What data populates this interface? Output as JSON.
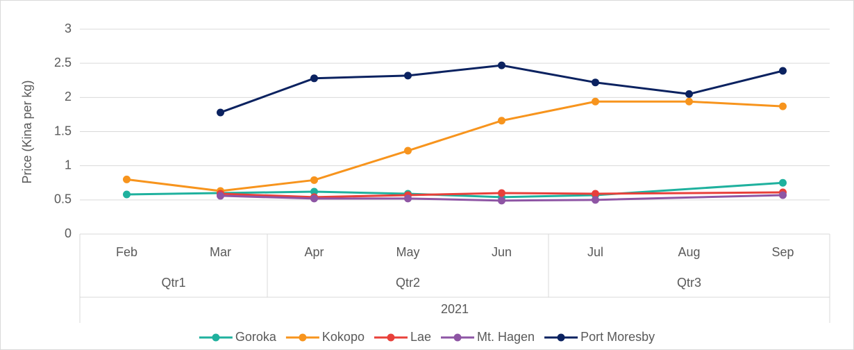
{
  "chart_data": {
    "type": "line",
    "y_label": "Price (Kina per kg)",
    "categories": [
      "Feb",
      "Mar",
      "Apr",
      "May",
      "Jun",
      "Jul",
      "Aug",
      "Sep"
    ],
    "quarters": [
      "Qtr1",
      "Qtr1",
      "Qtr2",
      "Qtr2",
      "Qtr2",
      "Qtr3",
      "Qtr3",
      "Qtr3"
    ],
    "year": "2021",
    "ylim": [
      0,
      3
    ],
    "yticks": [
      0,
      0.5,
      1,
      1.5,
      2,
      2.5,
      3
    ],
    "grid": true,
    "connect_gaps": true,
    "legend": "bottom",
    "series": [
      {
        "name": "Goroka",
        "color": "#1fb19e",
        "values": [
          0.58,
          0.6,
          0.62,
          0.59,
          0.54,
          0.57,
          null,
          0.75
        ]
      },
      {
        "name": "Kokopo",
        "color": "#f7941d",
        "values": [
          0.8,
          0.63,
          0.79,
          1.22,
          1.66,
          1.94,
          1.94,
          1.87
        ]
      },
      {
        "name": "Lae",
        "color": "#e8403a",
        "values": [
          null,
          0.59,
          0.54,
          0.57,
          0.6,
          0.59,
          null,
          0.61
        ]
      },
      {
        "name": "Mt. Hagen",
        "color": "#8e55a4",
        "values": [
          null,
          0.56,
          0.52,
          0.52,
          0.49,
          0.5,
          null,
          0.57
        ]
      },
      {
        "name": "Port Moresby",
        "color": "#0b2260",
        "values": [
          null,
          1.78,
          2.28,
          2.32,
          2.47,
          2.22,
          2.05,
          2.39
        ]
      }
    ]
  }
}
